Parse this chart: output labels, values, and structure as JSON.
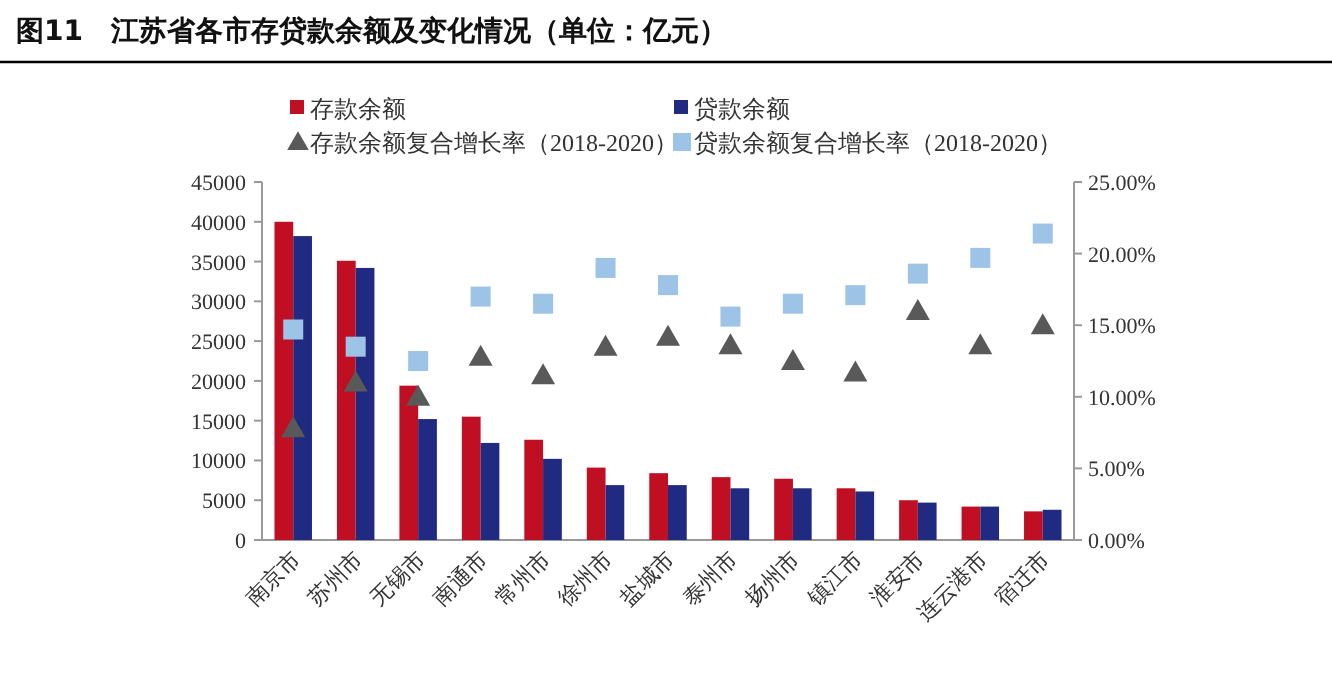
{
  "chart_data": {
    "type": "bar",
    "title": "图11　江苏省各市存贷款余额及变化情况（单位：亿元）",
    "categories": [
      "南京市",
      "苏州市",
      "无锡市",
      "南通市",
      "常州市",
      "徐州市",
      "盐城市",
      "泰州市",
      "扬州市",
      "镇江市",
      "淮安市",
      "连云港市",
      "宿迁市"
    ],
    "series": [
      {
        "name": "存款余额",
        "type": "bar",
        "color": "#c00f23",
        "values": [
          40000,
          35100,
          19400,
          15500,
          12600,
          9100,
          8400,
          7900,
          7700,
          6500,
          5000,
          4200,
          3600
        ]
      },
      {
        "name": "贷款余额",
        "type": "bar",
        "color": "#1f2a80",
        "values": [
          38200,
          34200,
          15200,
          12200,
          10200,
          6900,
          6900,
          6500,
          6500,
          6100,
          4700,
          4200,
          3800
        ]
      },
      {
        "name": "存款余额复合增长率（2018-2020）",
        "type": "scatter",
        "axis": "y2",
        "marker": "triangle",
        "color": "#595959",
        "values": [
          7.8,
          11.0,
          10.0,
          12.8,
          11.5,
          13.5,
          14.2,
          13.6,
          12.5,
          11.7,
          16.0,
          13.6,
          15.0
        ]
      },
      {
        "name": "贷款余额复合增长率（2018-2020）",
        "type": "scatter",
        "axis": "y2",
        "marker": "square",
        "color": "#9dc3e6",
        "values": [
          14.7,
          13.5,
          12.5,
          17.0,
          16.5,
          19.0,
          17.8,
          15.6,
          16.5,
          17.1,
          18.6,
          19.7,
          21.4
        ]
      }
    ],
    "ylim": [
      0,
      45000
    ],
    "yticks": [
      0,
      5000,
      10000,
      15000,
      20000,
      25000,
      30000,
      35000,
      40000,
      45000
    ],
    "y2lim": [
      0,
      25
    ],
    "y2ticks": [
      {
        "value": 0,
        "label": "0.00%"
      },
      {
        "value": 5,
        "label": "5.00%"
      },
      {
        "value": 10,
        "label": "10.00%"
      },
      {
        "value": 15,
        "label": "15.00%"
      },
      {
        "value": 20,
        "label": "20.00%"
      },
      {
        "value": 25,
        "label": "25.00%"
      }
    ],
    "grid": false,
    "legend": "top"
  }
}
